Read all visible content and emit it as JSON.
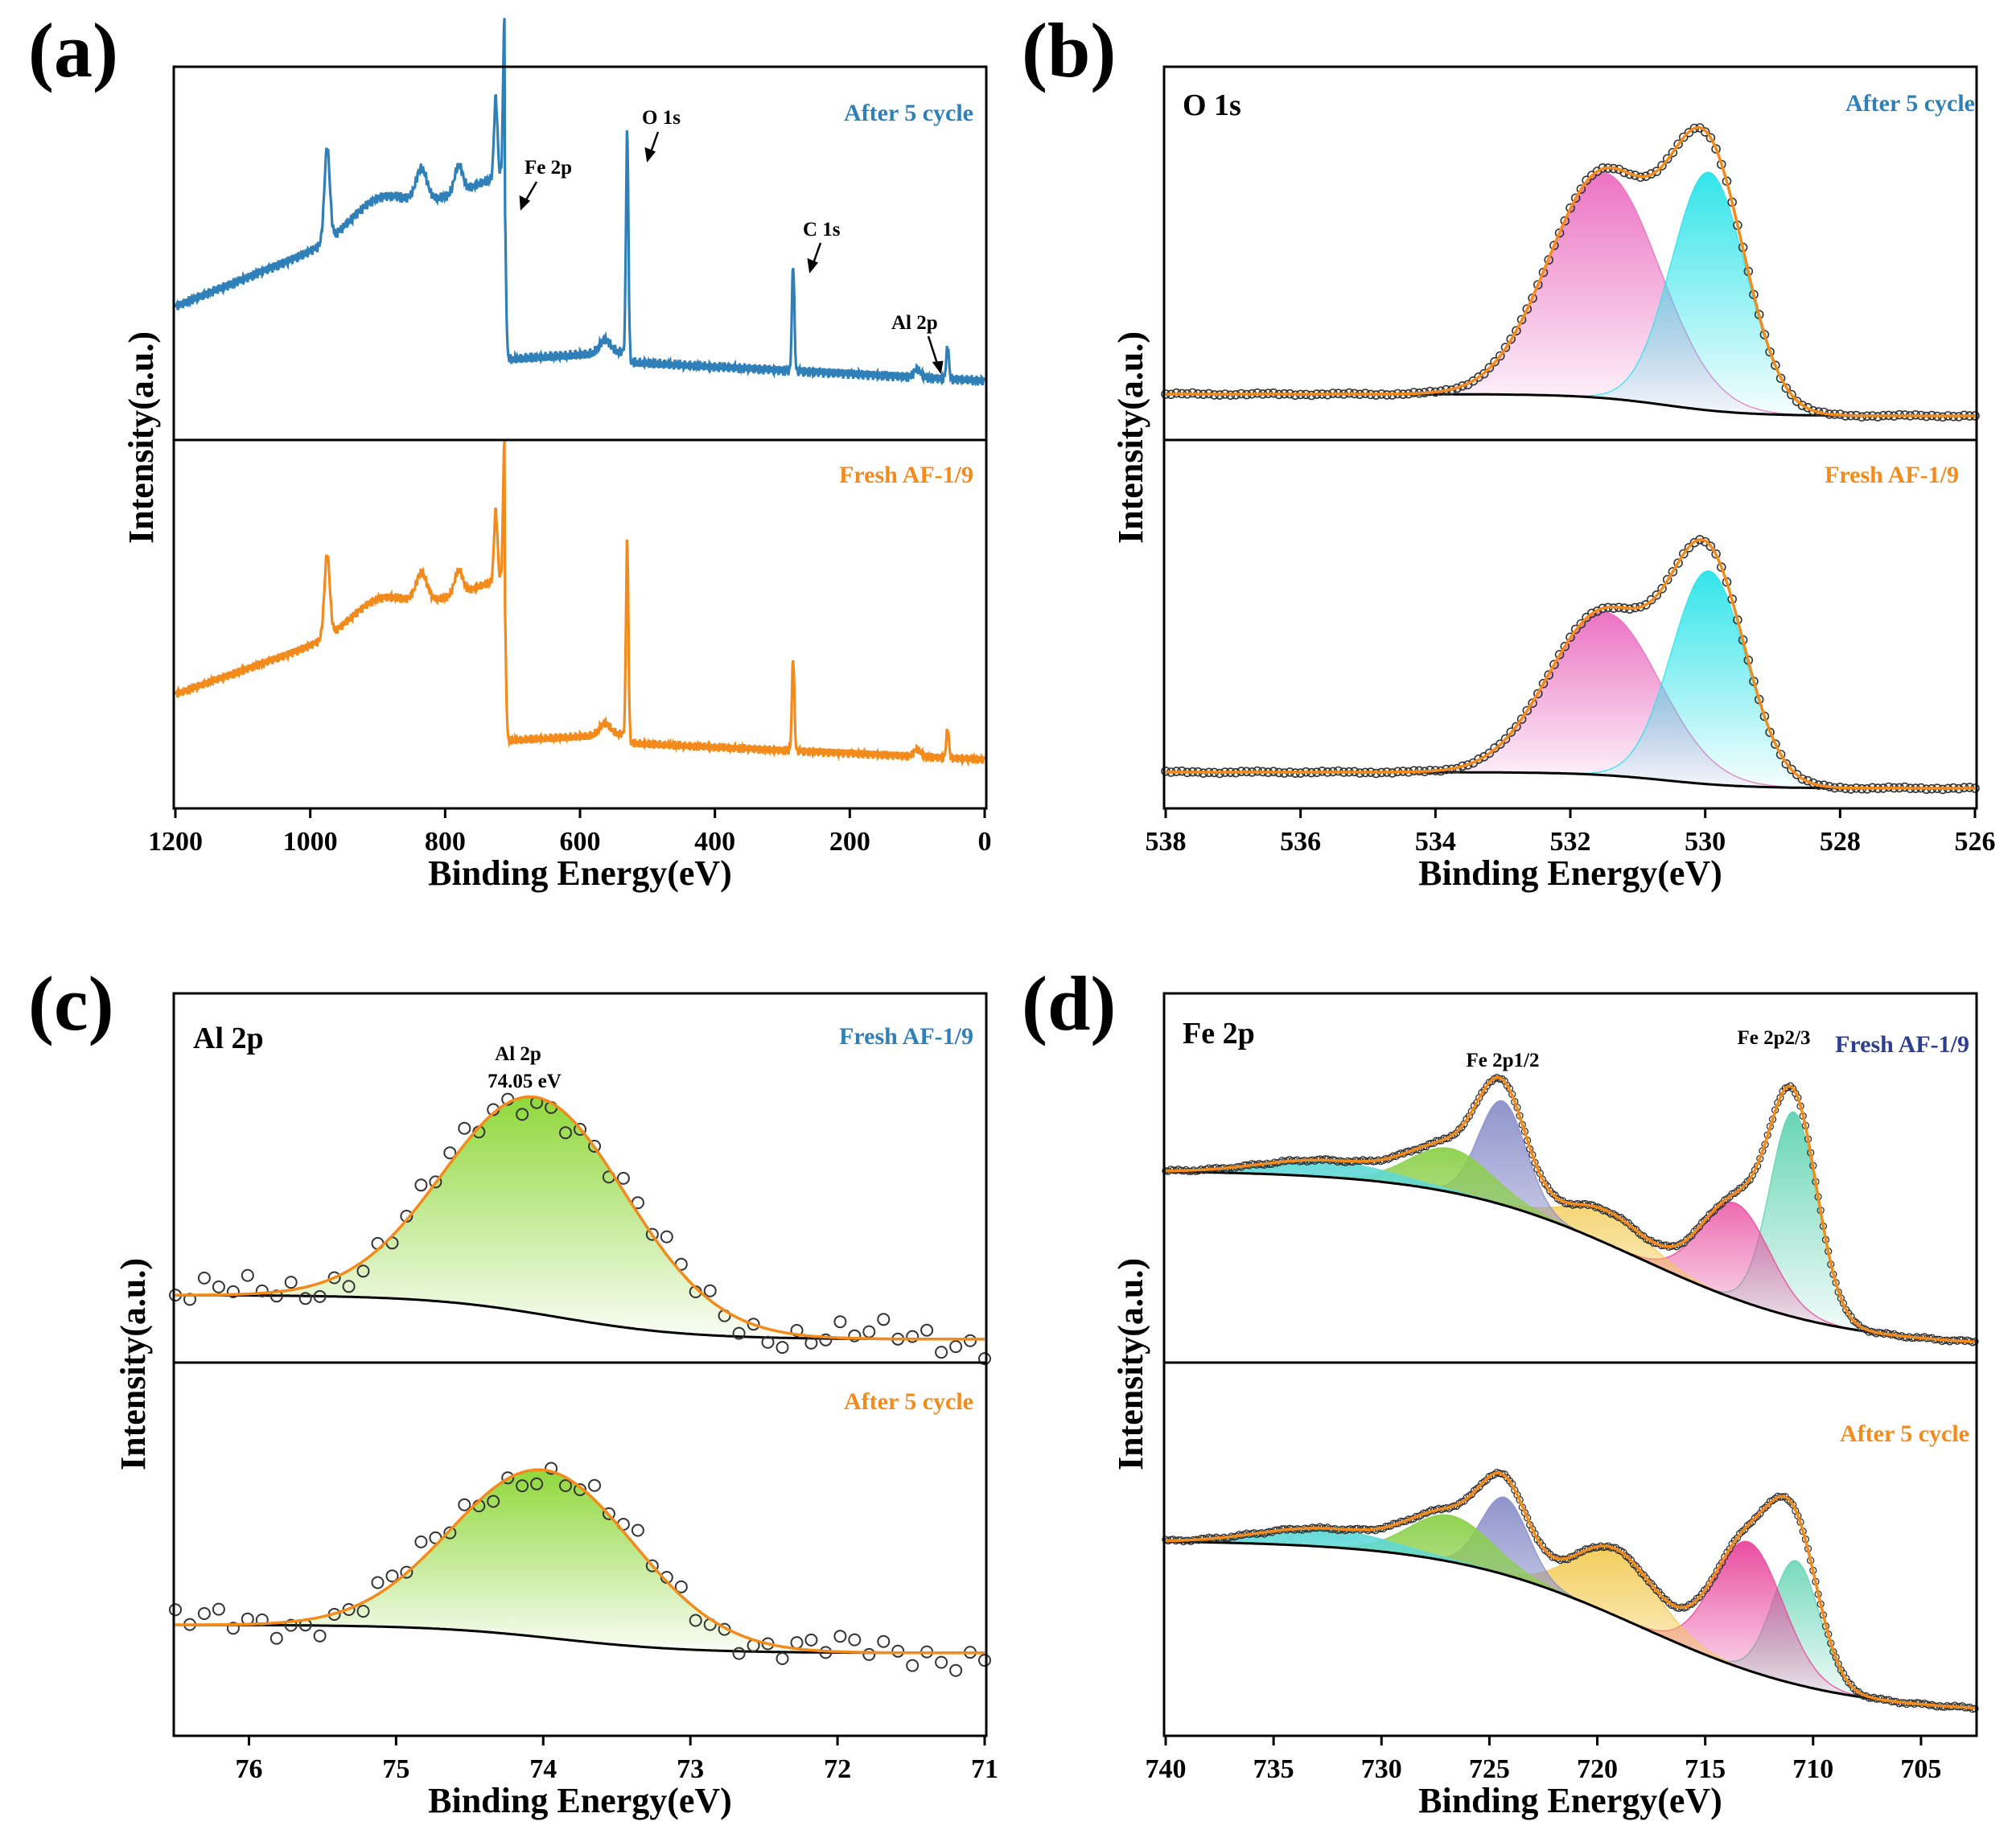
{
  "figure": {
    "xlabel": "Binding Energy(eV)",
    "ylabel": "Intensity(a.u.)"
  },
  "colors": {
    "blue": "#2f7fb8",
    "orange": "#f28a1c",
    "baseline": "#000000",
    "o_lattice": "#27e3e8",
    "o_vacancy": "#ea6cc0",
    "al_peak": "#8ad631",
    "fe_p32_main": "#5fd3b0",
    "fe_p32_sat": "#e8449b",
    "fe_sat2": "#f2c94c",
    "fe_p12_main": "#8a8fc9",
    "fe_p12_sat": "#8bd04a",
    "fe_sat3": "#5fd8d8"
  },
  "chart_data": [
    {
      "panel": "(a)",
      "type": "line",
      "title": "",
      "xlabel": "Binding Energy(eV)",
      "ylabel": "Intensity(a.u.)",
      "xlim": [
        1200,
        0
      ],
      "xticks": [
        "1200",
        "1000",
        "800",
        "600",
        "400",
        "200",
        "0"
      ],
      "series": [
        {
          "name": "After 5 cycle",
          "color": "blue",
          "stack": "top",
          "peaks_eV": [
            975,
            712,
            530,
            284,
            55
          ]
        },
        {
          "name": "Fresh AF-1/9",
          "color": "orange",
          "stack": "bottom",
          "peaks_eV": [
            975,
            712,
            530,
            284,
            55
          ]
        }
      ],
      "annotations": [
        "Fe 2p",
        "O 1s",
        "C 1s",
        "Al 2p"
      ]
    },
    {
      "panel": "(b)",
      "type": "line",
      "title": "O 1s",
      "xlabel": "Binding Energy(eV)",
      "ylabel": "Intensity(a.u.)",
      "xlim": [
        538,
        526
      ],
      "xticks": [
        "538",
        "536",
        "534",
        "532",
        "530",
        "528",
        "526"
      ],
      "series": [
        {
          "name": "After 5 cycle",
          "stack": "top",
          "components": [
            {
              "center": 531.5,
              "height": 0.7,
              "color": "o_vacancy"
            },
            {
              "center": 529.95,
              "height": 0.74,
              "color": "o_lattice"
            }
          ]
        },
        {
          "name": "Fresh AF-1/9",
          "stack": "bottom",
          "components": [
            {
              "center": 531.5,
              "height": 0.52,
              "color": "o_vacancy"
            },
            {
              "center": 529.95,
              "height": 0.68,
              "color": "o_lattice"
            }
          ]
        }
      ]
    },
    {
      "panel": "(c)",
      "type": "line",
      "title": "Al 2p",
      "xlabel": "Binding Energy(eV)",
      "ylabel": "Intensity(a.u.)",
      "xlim": [
        76.5,
        71.0
      ],
      "xticks": [
        "76",
        "75",
        "74",
        "73",
        "72",
        "71"
      ],
      "peak_annotation": {
        "label": "Al 2p",
        "value": "74.05 eV",
        "center": 74.05
      },
      "series": [
        {
          "name": "Fresh AF-1/9",
          "stack": "top",
          "label_color": "blue",
          "components": [
            {
              "center": 74.05,
              "height": 0.64,
              "color": "al_peak"
            }
          ]
        },
        {
          "name": "After 5 cycle",
          "stack": "bottom",
          "label_color": "orange",
          "components": [
            {
              "center": 74.0,
              "height": 0.52,
              "color": "al_peak"
            }
          ]
        }
      ]
    },
    {
      "panel": "(d)",
      "type": "line",
      "title": "Fe 2p",
      "xlabel": "Binding Energy(eV)",
      "ylabel": "Intensity(a.u.)",
      "xlim": [
        740,
        702.5
      ],
      "xticks": [
        "740",
        "735",
        "730",
        "725",
        "720",
        "715",
        "710",
        "705"
      ],
      "annotations": [
        "Fe 2p1/2",
        "Fe 2p2/3"
      ],
      "series": [
        {
          "name": "Fresh AF-1/9",
          "stack": "top",
          "label_color": "navy",
          "components": [
            {
              "center": 710.9,
              "height": 0.75,
              "color": "fe_p32_main"
            },
            {
              "center": 713.6,
              "height": 0.35,
              "color": "fe_p32_sat"
            },
            {
              "center": 719.6,
              "height": 0.12,
              "color": "fe_sat2"
            },
            {
              "center": 724.4,
              "height": 0.38,
              "color": "fe_p12_main"
            },
            {
              "center": 726.8,
              "height": 0.16,
              "color": "fe_p12_sat"
            },
            {
              "center": 732.5,
              "height": 0.06,
              "color": "fe_sat3"
            }
          ]
        },
        {
          "name": "After 5 cycle",
          "stack": "bottom",
          "label_color": "orange",
          "components": [
            {
              "center": 710.8,
              "height": 0.48,
              "color": "fe_p32_main"
            },
            {
              "center": 713.0,
              "height": 0.5,
              "color": "fe_p32_sat"
            },
            {
              "center": 719.2,
              "height": 0.26,
              "color": "fe_sat2"
            },
            {
              "center": 724.3,
              "height": 0.3,
              "color": "fe_p12_main"
            },
            {
              "center": 726.8,
              "height": 0.18,
              "color": "fe_p12_sat"
            },
            {
              "center": 732.6,
              "height": 0.07,
              "color": "fe_sat3"
            }
          ]
        }
      ]
    }
  ],
  "labels": {
    "a": {
      "panel": "(a)",
      "top": "After 5 cycle",
      "bottom": "Fresh AF-1/9",
      "fe": "Fe 2p",
      "o": "O 1s",
      "c": "C 1s",
      "al": "Al 2p"
    },
    "b": {
      "panel": "(b)",
      "title": "O 1s",
      "top": "After 5 cycle",
      "bottom": "Fresh AF-1/9"
    },
    "c": {
      "panel": "(c)",
      "title": "Al 2p",
      "top": "Fresh AF-1/9",
      "bottom": "After 5 cycle",
      "peak_name": "Al 2p",
      "peak_value": "74.05 eV"
    },
    "d": {
      "panel": "(d)",
      "title": "Fe 2p",
      "top": "Fresh AF-1/9",
      "bottom": "After 5 cycle",
      "p12": "Fe 2p1/2",
      "p32": "Fe 2p2/3"
    }
  }
}
